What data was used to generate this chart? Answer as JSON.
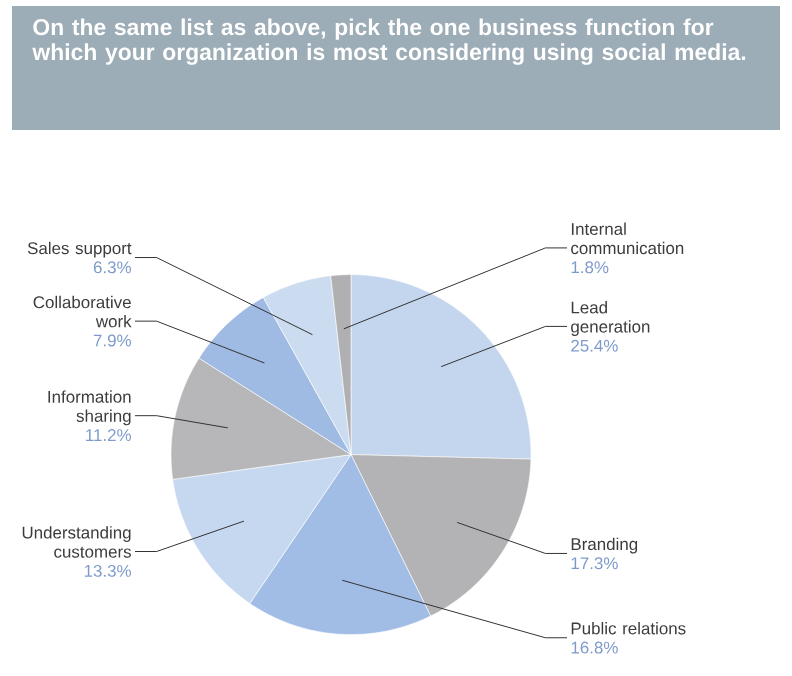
{
  "chart_data": {
    "type": "pie",
    "title": "On the same list as above, pick the one business function for which your organization is most considering using social media.",
    "categories": [
      "Lead generation",
      "Branding",
      "Public relations",
      "Understanding customers",
      "Information sharing",
      "Collaborative work",
      "Sales support",
      "Internal communication"
    ],
    "values": [
      25.4,
      17.3,
      16.8,
      13.3,
      11.2,
      7.9,
      6.3,
      1.8
    ],
    "value_labels": [
      "25.4%",
      "17.3%",
      "16.8%",
      "13.3%",
      "11.2%",
      "7.9%",
      "6.3%",
      "1.8%"
    ],
    "colors": [
      "#c3d6ee",
      "#b3b3b5",
      "#a2bde5",
      "#c6d8f0",
      "#b7b7b9",
      "#9fbae3",
      "#cbdbf0",
      "#b0b0b2"
    ]
  }
}
